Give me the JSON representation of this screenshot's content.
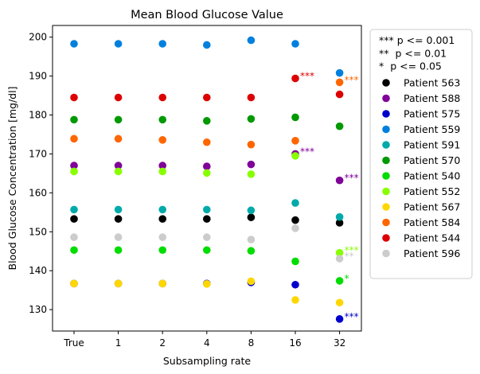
{
  "chart_data": {
    "type": "scatter",
    "title": "Mean Blood Glucose Value",
    "xlabel": "Subsampling rate",
    "ylabel": "Blood Glucose Concentration [mg/dl]",
    "categories": [
      "True",
      "1",
      "2",
      "4",
      "8",
      "16",
      "32"
    ],
    "ylim": [
      124.5,
      203
    ],
    "yticks": [
      130,
      140,
      150,
      160,
      170,
      180,
      190,
      200
    ],
    "grid": false,
    "legend_position": "outside-right",
    "legend_notes": [
      "*** p <= 0.001",
      "**  p <= 0.01",
      "*  p <= 0.05"
    ],
    "series": [
      {
        "name": "Patient 563",
        "color": "#000000",
        "values": [
          153.3,
          153.3,
          153.3,
          153.3,
          153.7,
          153.0,
          152.3
        ]
      },
      {
        "name": "Patient 588",
        "color": "#800099",
        "values": [
          167.0,
          167.0,
          167.0,
          166.8,
          167.3,
          170.0,
          163.2
        ]
      },
      {
        "name": "Patient 575",
        "color": "#0000cc",
        "values": [
          136.7,
          136.7,
          136.7,
          136.7,
          137.0,
          136.4,
          127.6
        ]
      },
      {
        "name": "Patient 559",
        "color": "#0080dd",
        "values": [
          198.3,
          198.3,
          198.3,
          198.0,
          199.2,
          198.3,
          190.8
        ]
      },
      {
        "name": "Patient 591",
        "color": "#00aaaa",
        "values": [
          155.7,
          155.7,
          155.7,
          155.7,
          155.5,
          157.4,
          153.8
        ]
      },
      {
        "name": "Patient 570",
        "color": "#009900",
        "values": [
          178.8,
          178.8,
          178.8,
          178.5,
          179.0,
          179.4,
          177.1
        ]
      },
      {
        "name": "Patient 540",
        "color": "#00dd00",
        "values": [
          145.3,
          145.3,
          145.3,
          145.3,
          145.1,
          142.4,
          137.4
        ]
      },
      {
        "name": "Patient 552",
        "color": "#88ff00",
        "values": [
          165.5,
          165.5,
          165.5,
          165.1,
          164.8,
          169.5,
          144.6
        ]
      },
      {
        "name": "Patient 567",
        "color": "#ffd700",
        "values": [
          136.7,
          136.7,
          136.7,
          136.6,
          137.3,
          132.5,
          131.8
        ]
      },
      {
        "name": "Patient 584",
        "color": "#ff6600",
        "values": [
          173.9,
          173.9,
          173.6,
          173.0,
          172.4,
          173.4,
          188.4
        ]
      },
      {
        "name": "Patient 544",
        "color": "#dd0000",
        "values": [
          184.5,
          184.5,
          184.5,
          184.5,
          184.5,
          189.4,
          185.3
        ]
      },
      {
        "name": "Patient 596",
        "color": "#cccccc",
        "values": [
          148.6,
          148.6,
          148.6,
          148.6,
          148.0,
          150.9,
          143.1
        ]
      }
    ],
    "annotations": [
      {
        "category": "16",
        "y": 189.4,
        "text": "***",
        "color": "#dd0000"
      },
      {
        "category": "16",
        "y": 170.0,
        "text": "***",
        "color": "#800099"
      },
      {
        "category": "32",
        "y": 188.4,
        "text": "***",
        "color": "#ff6600"
      },
      {
        "category": "32",
        "y": 163.2,
        "text": "***",
        "color": "#800099"
      },
      {
        "category": "32",
        "y": 144.6,
        "text": "***",
        "color": "#88ff00"
      },
      {
        "category": "32",
        "y": 143.1,
        "text": "**",
        "color": "#cccccc"
      },
      {
        "category": "32",
        "y": 137.4,
        "text": "*",
        "color": "#00dd00"
      },
      {
        "category": "32",
        "y": 127.6,
        "text": "***",
        "color": "#0000cc"
      }
    ]
  }
}
